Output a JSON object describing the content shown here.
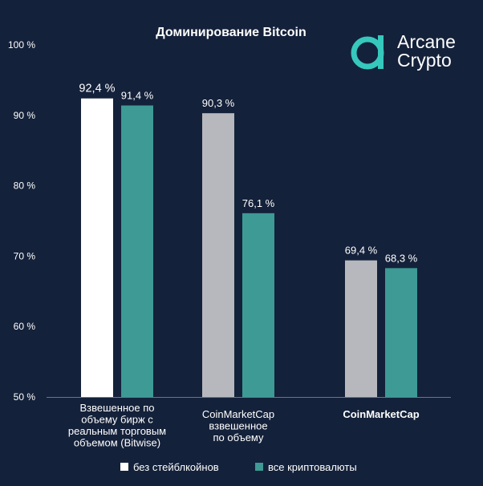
{
  "chart_data": {
    "type": "bar",
    "title": "Доминирование Bitcoin",
    "ylim": [
      50,
      100
    ],
    "yticks": [
      50,
      60,
      70,
      80,
      90,
      100
    ],
    "ytick_labels": [
      "50 %",
      "60 %",
      "70 %",
      "80 %",
      "90 %",
      "100 %"
    ],
    "categories": [
      [
        "Взвешенное по",
        "объему бирж с",
        "реальным торговым",
        "объемом (Bitwise)"
      ],
      [
        "CoinMarketCap",
        "взвешенное",
        "по объему"
      ],
      [
        "CoinMarketCap"
      ]
    ],
    "series": [
      {
        "name": "без стейблкойнов",
        "values": [
          92.4,
          90.3,
          69.4
        ],
        "labels": [
          "92,4 %",
          "90,3 %",
          "69,4 %"
        ]
      },
      {
        "name": "все криптовалюты",
        "values": [
          91.4,
          76.1,
          68.3
        ],
        "labels": [
          "91,4 %",
          "76,1 %",
          "68,3 %"
        ]
      }
    ],
    "colors": {
      "background": "#14213a",
      "highlight": "#ffffff",
      "gray": "#b6b8bd",
      "teal": "#3d9a95"
    }
  },
  "logo": {
    "line1": "Arcane",
    "line2": "Crypto",
    "accent": "#36c8bd"
  }
}
